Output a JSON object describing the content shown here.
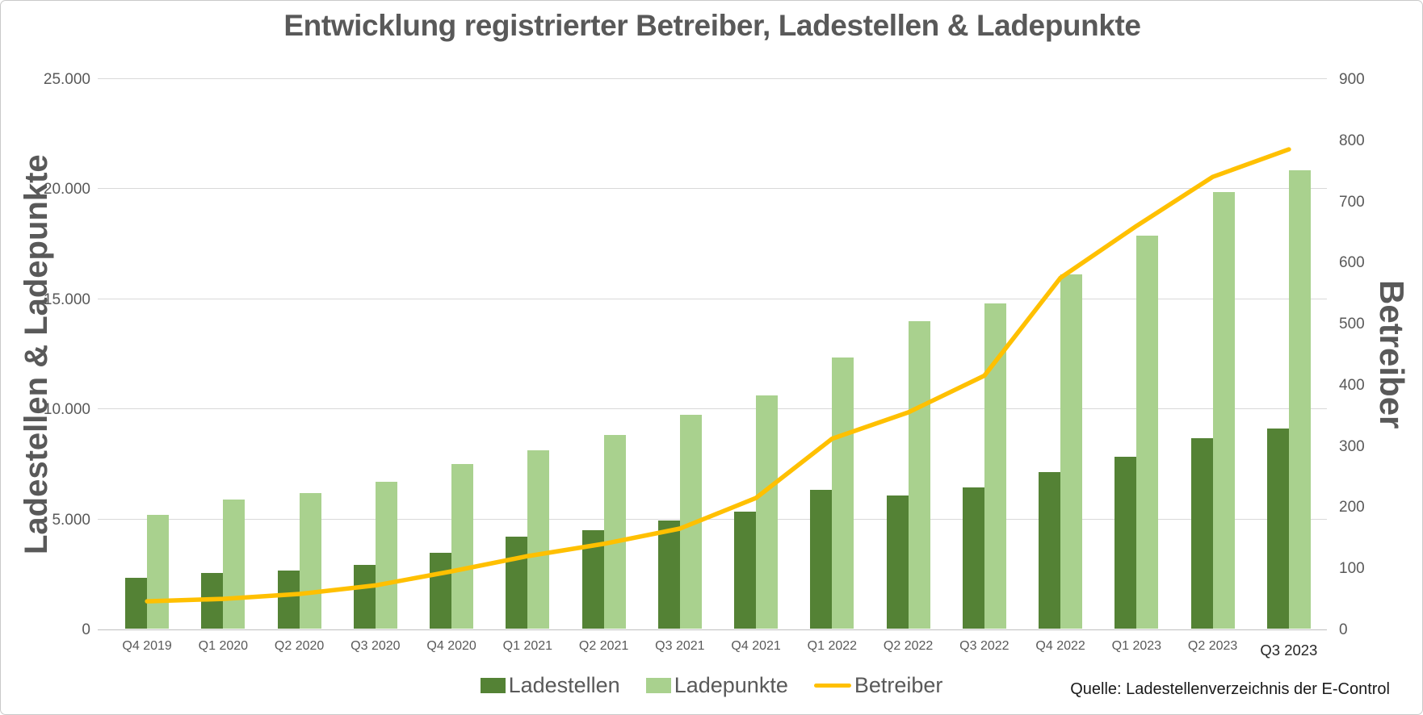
{
  "chart_data": {
    "type": "bar",
    "subtype": "grouped-bars-with-line-combo",
    "title": "Entwicklung registrierter Betreiber, Ladestellen & Ladepunkte",
    "categories": [
      "Q4 2019",
      "Q1 2020",
      "Q2 2020",
      "Q3 2020",
      "Q4 2020",
      "Q1 2021",
      "Q2 2021",
      "Q3 2021",
      "Q4 2021",
      "Q1 2022",
      "Q2 2022",
      "Q3 2022",
      "Q4 2022",
      "Q1 2023",
      "Q2 2023",
      "Q3 2023"
    ],
    "series": [
      {
        "name": "Ladestellen",
        "type": "bar",
        "axis": "left",
        "color": "#548235",
        "values": [
          2300,
          2520,
          2640,
          2890,
          3450,
          4170,
          4470,
          4930,
          5330,
          6310,
          6040,
          6400,
          7100,
          7800,
          8650,
          9100
        ]
      },
      {
        "name": "Ladepunkte",
        "type": "bar",
        "axis": "left",
        "color": "#A9D18E",
        "values": [
          5170,
          5880,
          6160,
          6660,
          7470,
          8100,
          8780,
          9730,
          10580,
          12330,
          13970,
          14770,
          16100,
          17870,
          19830,
          20810
        ]
      },
      {
        "name": "Betreiber",
        "type": "line",
        "axis": "right",
        "color": "#FFC000",
        "values": [
          46,
          50,
          58,
          72,
          95,
          120,
          140,
          165,
          215,
          312,
          355,
          415,
          575,
          660,
          740,
          785
        ]
      }
    ],
    "left_axis": {
      "title": "Ladestellen & Ladepunkte",
      "min": 0,
      "max": 25000,
      "step": 5000,
      "tick_labels": [
        "0",
        "5.000",
        "10.000",
        "15.000",
        "20.000",
        "25.000"
      ],
      "tick_values": [
        0,
        5000,
        10000,
        15000,
        20000,
        25000
      ]
    },
    "right_axis": {
      "title": "Betreiber",
      "min": 0,
      "max": 900,
      "step": 100,
      "tick_labels": [
        "0",
        "100",
        "200",
        "300",
        "400",
        "500",
        "600",
        "700",
        "800",
        "900"
      ],
      "tick_values": [
        0,
        100,
        200,
        300,
        400,
        500,
        600,
        700,
        800,
        900
      ]
    },
    "x_axis": {
      "emphasized_tick": "Q3 2023"
    },
    "legend": {
      "position": "bottom",
      "entries": [
        "Ladestellen",
        "Ladepunkte",
        "Betreiber"
      ]
    },
    "grid": "horizontal",
    "colors": {
      "grid_line": "#d9d9d9",
      "axis_base_line": "#bfbfbf",
      "text_gray": "#595959",
      "emphasized_tick_text": "#262626",
      "source_text": "#1a1a1a"
    },
    "source": "Quelle: Ladestellenverzeichnis der E-Control"
  }
}
